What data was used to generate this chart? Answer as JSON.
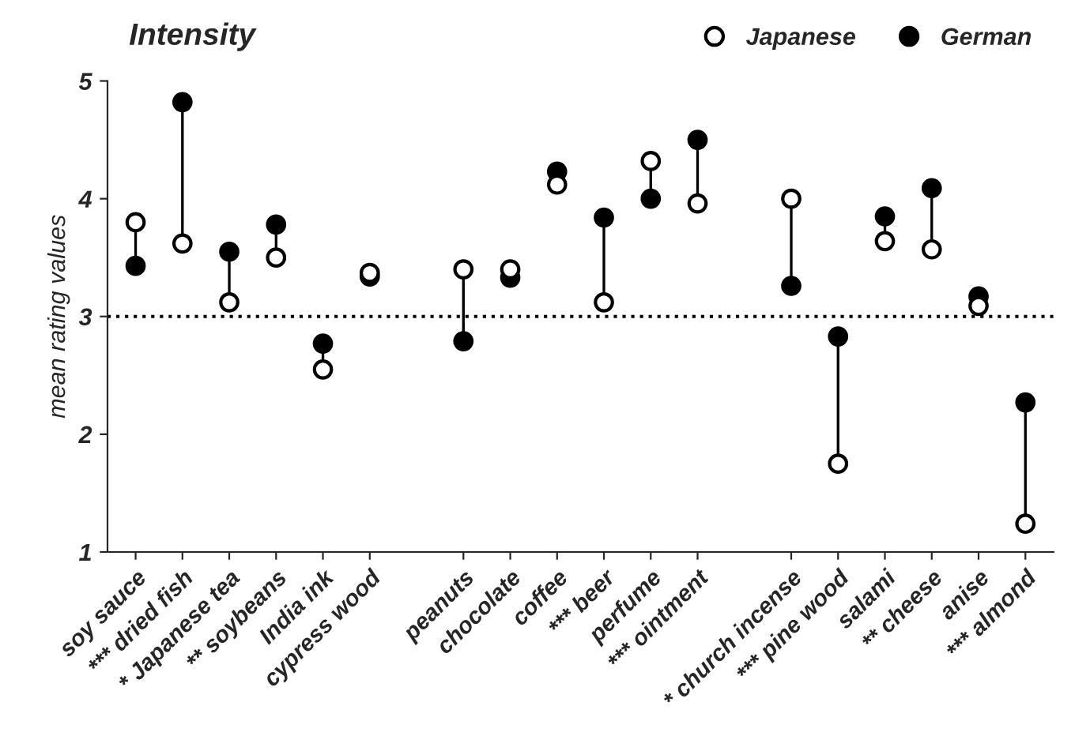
{
  "chart_data": {
    "type": "scatter",
    "title": "Intensity",
    "ylabel": "mean rating values",
    "categories": [
      "soy sauce",
      "*** dried fish",
      "* Japanese tea",
      "** soybeans",
      "India ink",
      "cypress wood",
      null,
      "peanuts",
      "chocolate",
      "coffee",
      "*** beer",
      "perfume",
      "*** ointment",
      null,
      "* church incense",
      "*** pine wood",
      "salami",
      "** cheese",
      "anise",
      "*** almond"
    ],
    "series": [
      {
        "name": "Japanese",
        "color": "#ffffff",
        "values": [
          3.8,
          3.62,
          3.12,
          3.5,
          2.55,
          3.37,
          null,
          3.4,
          3.4,
          4.12,
          3.12,
          4.32,
          3.96,
          null,
          4.0,
          1.75,
          3.64,
          3.57,
          3.09,
          1.24
        ]
      },
      {
        "name": "German",
        "color": "#000000",
        "values": [
          3.43,
          4.82,
          3.55,
          3.78,
          2.77,
          3.34,
          null,
          2.79,
          3.33,
          4.23,
          3.84,
          4.0,
          4.5,
          null,
          3.26,
          2.83,
          3.85,
          4.09,
          3.17,
          2.27
        ]
      }
    ],
    "ylim": [
      1,
      5
    ],
    "yticks": [
      1,
      2,
      3,
      4,
      5
    ],
    "marker": "circle",
    "grid": false,
    "legend": "top right",
    "ref_lines": [
      {
        "axis": "y",
        "value": 3,
        "line_style": "dotted",
        "color": "#000000"
      }
    ]
  }
}
